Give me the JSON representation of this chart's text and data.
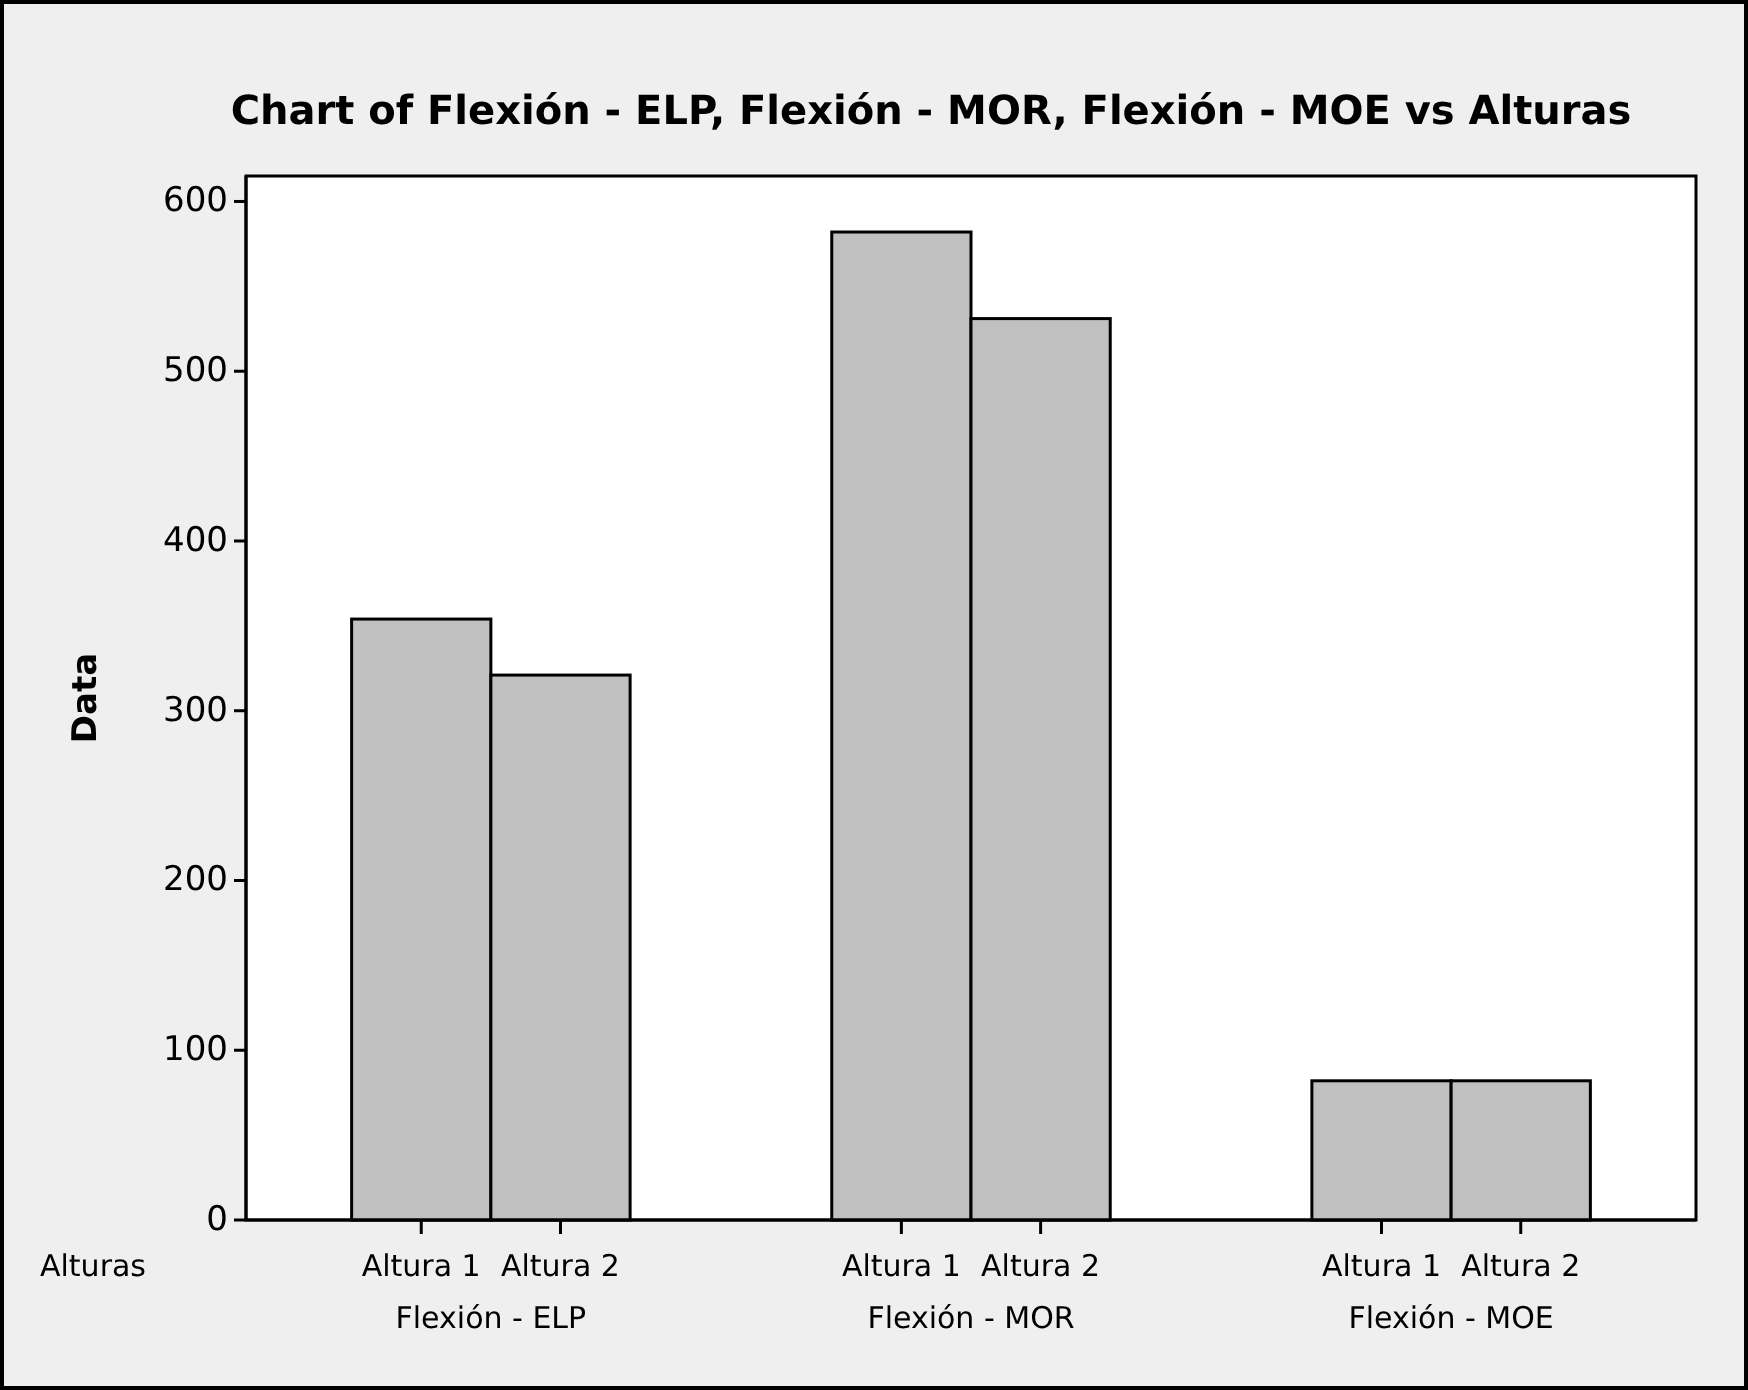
{
  "chart_data": {
    "type": "bar",
    "title": "Chart of Flexión - ELP, Flexión - MOR, Flexión - MOE vs Alturas",
    "ylabel": "Data",
    "xlabel": "Alturas",
    "categories": [
      "Flexión - ELP",
      "Flexión - MOR",
      "Flexión - MOE"
    ],
    "series": [
      {
        "name": "Altura 1",
        "color": "#c0c0c0",
        "values": [
          354,
          582,
          82
        ]
      },
      {
        "name": "Altura 2",
        "color": "#c0c0c0",
        "values": [
          321,
          531,
          82
        ]
      }
    ],
    "ylim": [
      0,
      615
    ],
    "yticks": [
      0,
      100,
      200,
      300,
      400,
      500,
      600
    ],
    "grid": false,
    "legend": "bottom"
  }
}
